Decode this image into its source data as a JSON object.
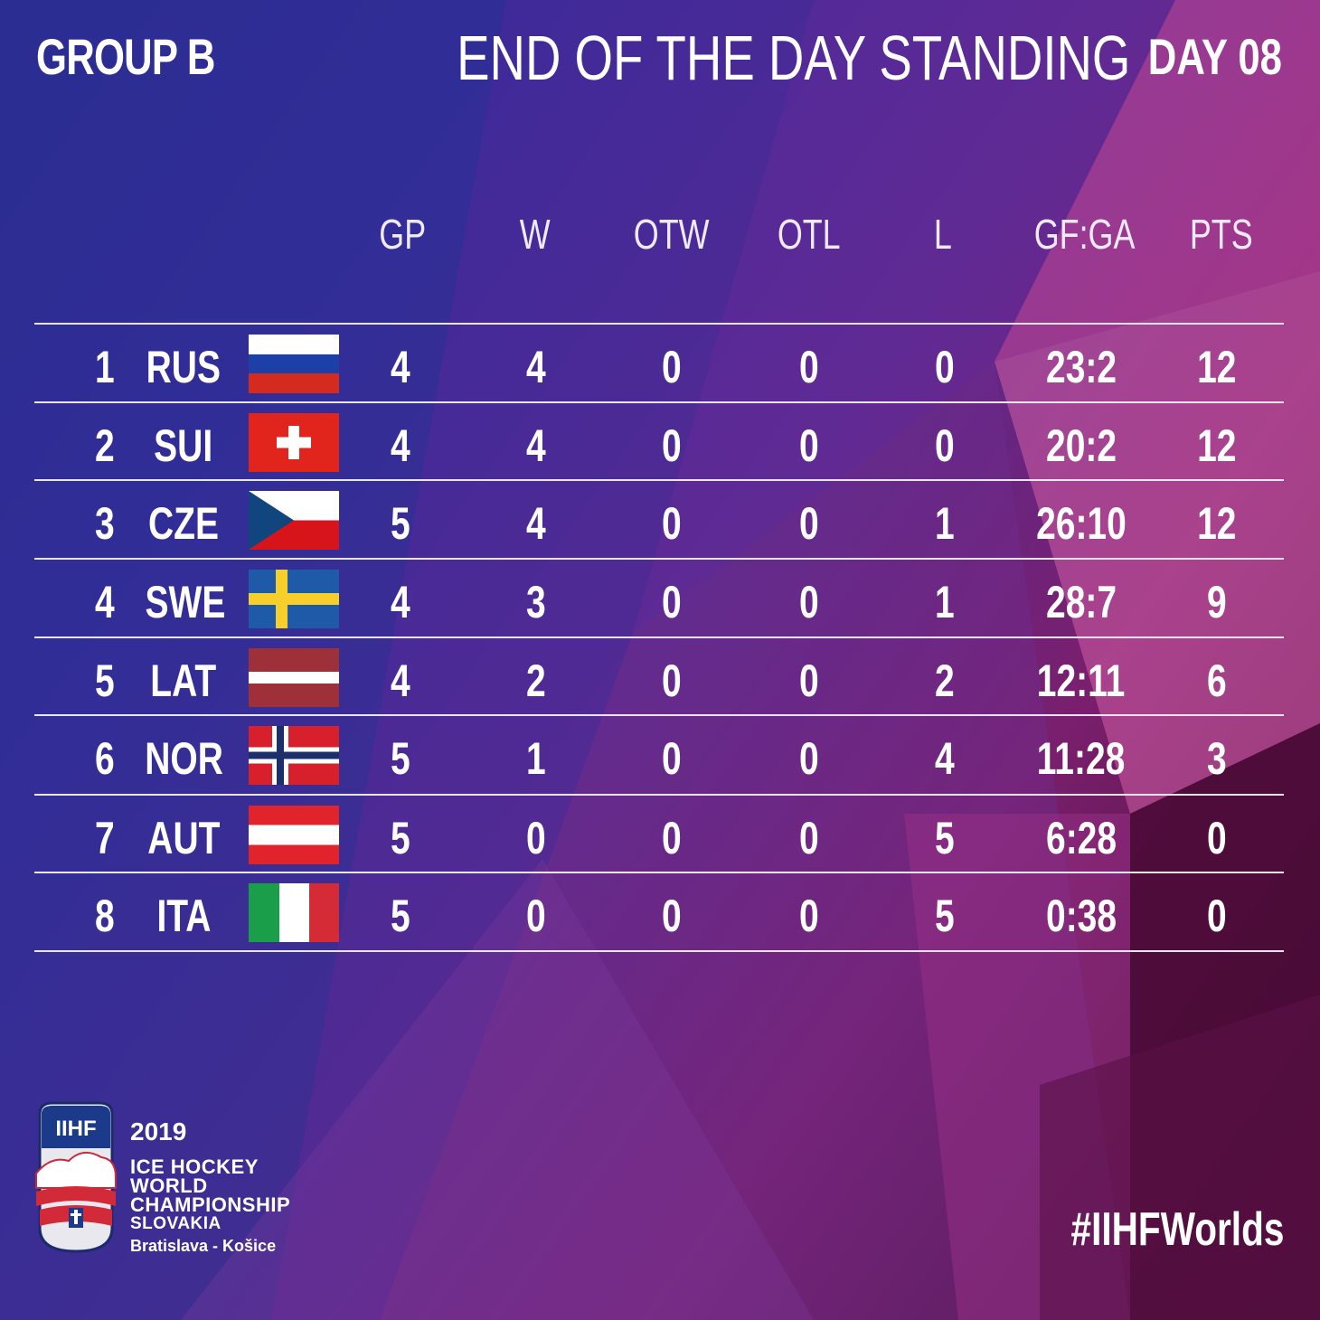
{
  "header": {
    "group": "GROUP B",
    "title": "END OF THE DAY STANDING",
    "day": "DAY 08"
  },
  "columns": [
    "GP",
    "W",
    "OTW",
    "OTL",
    "L",
    "GF:GA",
    "PTS"
  ],
  "standings": [
    {
      "rank": "1",
      "team": "RUS",
      "flag": "russia-flag",
      "gp": "4",
      "w": "4",
      "otw": "0",
      "otl": "0",
      "l": "0",
      "gfga": "23:2",
      "pts": "12"
    },
    {
      "rank": "2",
      "team": "SUI",
      "flag": "switzerland-flag",
      "gp": "4",
      "w": "4",
      "otw": "0",
      "otl": "0",
      "l": "0",
      "gfga": "20:2",
      "pts": "12"
    },
    {
      "rank": "3",
      "team": "CZE",
      "flag": "czech-flag",
      "gp": "5",
      "w": "4",
      "otw": "0",
      "otl": "0",
      "l": "1",
      "gfga": "26:10",
      "pts": "12"
    },
    {
      "rank": "4",
      "team": "SWE",
      "flag": "sweden-flag",
      "gp": "4",
      "w": "3",
      "otw": "0",
      "otl": "0",
      "l": "1",
      "gfga": "28:7",
      "pts": "9"
    },
    {
      "rank": "5",
      "team": "LAT",
      "flag": "latvia-flag",
      "gp": "4",
      "w": "2",
      "otw": "0",
      "otl": "0",
      "l": "2",
      "gfga": "12:11",
      "pts": "6"
    },
    {
      "rank": "6",
      "team": "NOR",
      "flag": "norway-flag",
      "gp": "5",
      "w": "1",
      "otw": "0",
      "otl": "0",
      "l": "4",
      "gfga": "11:28",
      "pts": "3"
    },
    {
      "rank": "7",
      "team": "AUT",
      "flag": "austria-flag",
      "gp": "5",
      "w": "0",
      "otw": "0",
      "otl": "0",
      "l": "5",
      "gfga": "6:28",
      "pts": "0"
    },
    {
      "rank": "8",
      "team": "ITA",
      "flag": "italy-flag",
      "gp": "5",
      "w": "0",
      "otw": "0",
      "otl": "0",
      "l": "5",
      "gfga": "0:38",
      "pts": "0"
    }
  ],
  "event": {
    "logo_text": "IIHF",
    "year": "2019",
    "line1": "ICE HOCKEY",
    "line2": "WORLD",
    "line3": "CHAMPIONSHIP",
    "line4": "SLOVAKIA",
    "cities": "Bratislava - Košice"
  },
  "hashtag": "#IIHFWorlds",
  "colors": {
    "background_start": "#2a2a8e",
    "background_end": "#3a0a30",
    "accent_pink": "#d9509a",
    "text": "#ffffff"
  }
}
